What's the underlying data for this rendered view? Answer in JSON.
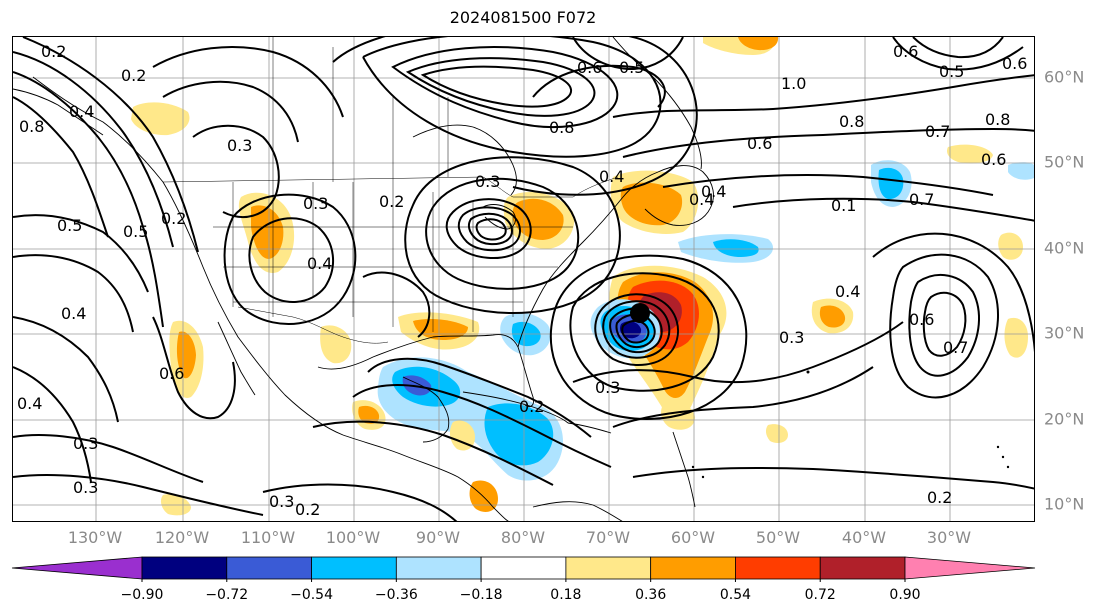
{
  "title": "2024081500 F072",
  "lon_labels": [
    "130°W",
    "120°W",
    "110°W",
    "100°W",
    "90°W",
    "80°W",
    "70°W",
    "60°W",
    "50°W",
    "40°W",
    "30°W"
  ],
  "lat_labels": [
    "60°N",
    "50°N",
    "40°N",
    "30°N",
    "20°N",
    "10°N"
  ],
  "colorbar": {
    "ticks": [
      "−0.90",
      "−0.72",
      "−0.54",
      "−0.36",
      "−0.18",
      "0.18",
      "0.36",
      "0.54",
      "0.72",
      "0.90"
    ],
    "colors": [
      "#9a2fcf",
      "#00007f",
      "#3a5bd6",
      "#00bfff",
      "#aee3ff",
      "#ffffff",
      "#ffe88a",
      "#ff9d00",
      "#ff3d00",
      "#b0202a",
      "#ff80b0"
    ]
  },
  "contour_labels": [
    {
      "text": "0.2"
    },
    {
      "text": "0.2"
    },
    {
      "text": "0.4"
    },
    {
      "text": "0.8"
    },
    {
      "text": "0.3"
    },
    {
      "text": "0.5"
    },
    {
      "text": "0.5"
    },
    {
      "text": "0.2"
    },
    {
      "text": "0.3"
    },
    {
      "text": "0.4"
    },
    {
      "text": "0.3"
    },
    {
      "text": "0.2"
    },
    {
      "text": "0.4"
    },
    {
      "text": "0.6"
    },
    {
      "text": "0.4"
    },
    {
      "text": "0.3"
    },
    {
      "text": "0.3"
    },
    {
      "text": "0.2"
    },
    {
      "text": "0.3"
    },
    {
      "text": "0.3"
    },
    {
      "text": "0.2"
    },
    {
      "text": "0.6"
    },
    {
      "text": "0.5"
    },
    {
      "text": "1.0"
    },
    {
      "text": "0.8"
    },
    {
      "text": "0.6"
    },
    {
      "text": "0.4"
    },
    {
      "text": "0.8"
    },
    {
      "text": "0.7"
    },
    {
      "text": "0.6"
    },
    {
      "text": "0.8"
    },
    {
      "text": "0.6"
    },
    {
      "text": "0.7"
    },
    {
      "text": "0.1"
    },
    {
      "text": "0.4"
    },
    {
      "text": "0.3"
    },
    {
      "text": "0.6"
    },
    {
      "text": "0.7"
    },
    {
      "text": "0.2"
    },
    {
      "text": "0.4"
    },
    {
      "text": "0.6"
    },
    {
      "text": "0.5"
    },
    {
      "text": "0.4"
    }
  ],
  "storm_marker": "storm-center"
}
